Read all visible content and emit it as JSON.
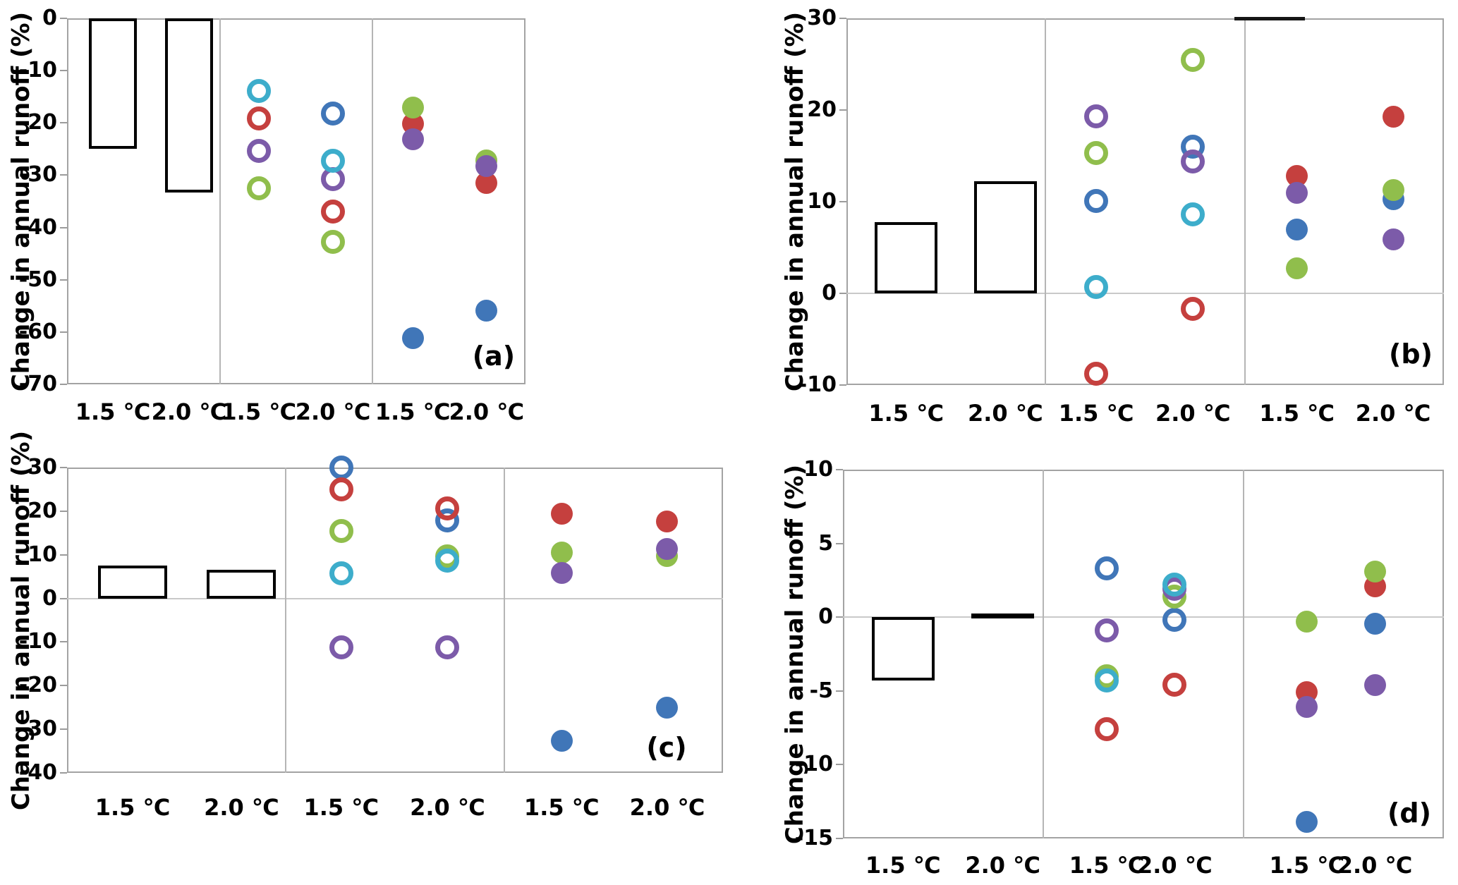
{
  "chart_data": {
    "type": "bar+scatter",
    "ylabel": "Change in annual runoff (%)",
    "series_colors": {
      "blue": "#4076B8",
      "red": "#C5403E",
      "green": "#90BE4C",
      "purple": "#7C5BA9",
      "cyan": "#3DADCB"
    },
    "marker_styles": {
      "open": "hollow circle",
      "filled": "solid circle"
    },
    "panels": [
      {
        "id": "a",
        "label": "(a)",
        "ylim": [
          -70,
          0
        ],
        "yticks": [
          0,
          -10,
          -20,
          -30,
          -40,
          -50,
          -60,
          -70
        ],
        "x_categories": [
          "1.5 ℃",
          "2.0 ℃",
          "1.5 ℃",
          "2.0 ℃",
          "1.5 ℃",
          "2.0 ℃"
        ],
        "bars": [
          {
            "cat": 0,
            "value": -25.0
          },
          {
            "cat": 1,
            "value": -33.3
          }
        ],
        "markers": [
          {
            "cat": 2,
            "series": "red",
            "style": "open",
            "value": -19.2
          },
          {
            "cat": 2,
            "series": "green",
            "style": "open",
            "value": -32.5
          },
          {
            "cat": 2,
            "series": "purple",
            "style": "open",
            "value": -25.3
          },
          {
            "cat": 2,
            "series": "cyan",
            "style": "open",
            "value": -13.9
          },
          {
            "cat": 3,
            "series": "blue",
            "style": "open",
            "value": -18.2
          },
          {
            "cat": 3,
            "series": "red",
            "style": "open",
            "value": -36.9
          },
          {
            "cat": 3,
            "series": "green",
            "style": "open",
            "value": -42.7
          },
          {
            "cat": 3,
            "series": "purple",
            "style": "open",
            "value": -30.8
          },
          {
            "cat": 3,
            "series": "cyan",
            "style": "open",
            "value": -27.3
          },
          {
            "cat": 4,
            "series": "blue",
            "style": "filled",
            "value": -61.1
          },
          {
            "cat": 4,
            "series": "red",
            "style": "filled",
            "value": -20.2
          },
          {
            "cat": 4,
            "series": "green",
            "style": "filled",
            "value": -17.1
          },
          {
            "cat": 4,
            "series": "purple",
            "style": "filled",
            "value": -23.1
          },
          {
            "cat": 5,
            "series": "blue",
            "style": "filled",
            "value": -55.9
          },
          {
            "cat": 5,
            "series": "red",
            "style": "filled",
            "value": -31.5
          },
          {
            "cat": 5,
            "series": "green",
            "style": "filled",
            "value": -27.2
          },
          {
            "cat": 5,
            "series": "purple",
            "style": "filled",
            "value": -28.3
          }
        ]
      },
      {
        "id": "b",
        "label": "(b)",
        "ylim": [
          -10,
          30
        ],
        "yticks": [
          30,
          20,
          10,
          0,
          -10
        ],
        "x_categories": [
          "1.5 ℃",
          "2.0 ℃",
          "1.5 ℃",
          "2.0 ℃",
          "1.5 ℃",
          "2.0 ℃"
        ],
        "bars": [
          {
            "cat": 0,
            "value": 7.8
          },
          {
            "cat": 1,
            "value": 12.2
          }
        ],
        "markers": [
          {
            "cat": 2,
            "series": "blue",
            "style": "open",
            "value": 10.1
          },
          {
            "cat": 2,
            "series": "red",
            "style": "open",
            "value": -8.8
          },
          {
            "cat": 2,
            "series": "green",
            "style": "open",
            "value": 15.3
          },
          {
            "cat": 2,
            "series": "purple",
            "style": "open",
            "value": 19.3
          },
          {
            "cat": 2,
            "series": "cyan",
            "style": "open",
            "value": 0.7
          },
          {
            "cat": 3,
            "series": "blue",
            "style": "open",
            "value": 16.0
          },
          {
            "cat": 3,
            "series": "red",
            "style": "open",
            "value": -1.7
          },
          {
            "cat": 3,
            "series": "green",
            "style": "open",
            "value": 25.5
          },
          {
            "cat": 3,
            "series": "purple",
            "style": "open",
            "value": 14.4
          },
          {
            "cat": 3,
            "series": "cyan",
            "style": "open",
            "value": 8.6
          },
          {
            "cat": 4,
            "series": "blue",
            "style": "filled",
            "value": 7.0
          },
          {
            "cat": 4,
            "series": "red",
            "style": "filled",
            "value": 12.8
          },
          {
            "cat": 4,
            "series": "green",
            "style": "filled",
            "value": 2.7
          },
          {
            "cat": 4,
            "series": "purple",
            "style": "filled",
            "value": 11.0
          },
          {
            "cat": 5,
            "series": "blue",
            "style": "filled",
            "value": 10.3
          },
          {
            "cat": 5,
            "series": "red",
            "style": "filled",
            "value": 19.3
          },
          {
            "cat": 5,
            "series": "green",
            "style": "filled",
            "value": 11.3
          },
          {
            "cat": 5,
            "series": "purple",
            "style": "filled",
            "value": 5.9
          }
        ]
      },
      {
        "id": "c",
        "label": "(c)",
        "ylim": [
          -40,
          30
        ],
        "yticks": [
          30,
          20,
          10,
          0,
          -10,
          -20,
          -30,
          -40
        ],
        "x_categories": [
          "1.5 ℃",
          "2.0 ℃",
          "1.5 ℃",
          "2.0 ℃",
          "1.5 ℃",
          "2.0 ℃"
        ],
        "bars": [
          {
            "cat": 0,
            "value": 7.6
          },
          {
            "cat": 1,
            "value": 6.5
          }
        ],
        "markers": [
          {
            "cat": 2,
            "series": "blue",
            "style": "open",
            "value": 30.0
          },
          {
            "cat": 2,
            "series": "red",
            "style": "open",
            "value": 25.0
          },
          {
            "cat": 2,
            "series": "green",
            "style": "open",
            "value": 15.4
          },
          {
            "cat": 2,
            "series": "purple",
            "style": "open",
            "value": -11.2
          },
          {
            "cat": 2,
            "series": "cyan",
            "style": "open",
            "value": 5.7
          },
          {
            "cat": 3,
            "series": "blue",
            "style": "open",
            "value": 17.9
          },
          {
            "cat": 3,
            "series": "red",
            "style": "open",
            "value": 20.6
          },
          {
            "cat": 3,
            "series": "green",
            "style": "open",
            "value": 9.6
          },
          {
            "cat": 3,
            "series": "purple",
            "style": "open",
            "value": -11.3
          },
          {
            "cat": 3,
            "series": "cyan",
            "style": "open",
            "value": 8.7
          },
          {
            "cat": 4,
            "series": "blue",
            "style": "filled",
            "value": -32.7
          },
          {
            "cat": 4,
            "series": "red",
            "style": "filled",
            "value": 19.4
          },
          {
            "cat": 4,
            "series": "green",
            "style": "filled",
            "value": 10.6
          },
          {
            "cat": 4,
            "series": "purple",
            "style": "filled",
            "value": 5.8
          },
          {
            "cat": 5,
            "series": "blue",
            "style": "filled",
            "value": -25.0
          },
          {
            "cat": 5,
            "series": "red",
            "style": "filled",
            "value": 17.6
          },
          {
            "cat": 5,
            "series": "green",
            "style": "filled",
            "value": 9.7
          },
          {
            "cat": 5,
            "series": "purple",
            "style": "filled",
            "value": 11.3
          }
        ]
      },
      {
        "id": "d",
        "label": "(d)",
        "ylim": [
          -15,
          10
        ],
        "yticks": [
          10,
          5,
          0,
          -5,
          -10,
          -15
        ],
        "x_categories": [
          "1.5 ℃",
          "2.0 ℃",
          "1.5 ℃",
          "2.0 ℃",
          "1.5 ℃",
          "2.0 ℃"
        ],
        "bars": [
          {
            "cat": 0,
            "value": -4.3
          },
          {
            "cat": 1,
            "value": 0.1
          }
        ],
        "markers": [
          {
            "cat": 2,
            "series": "blue",
            "style": "open",
            "value": 3.3
          },
          {
            "cat": 2,
            "series": "red",
            "style": "open",
            "value": -7.6
          },
          {
            "cat": 2,
            "series": "green",
            "style": "open",
            "value": -4.0
          },
          {
            "cat": 2,
            "series": "purple",
            "style": "open",
            "value": -0.9
          },
          {
            "cat": 2,
            "series": "cyan",
            "style": "open",
            "value": -4.3
          },
          {
            "cat": 3,
            "series": "blue",
            "style": "open",
            "value": -0.2
          },
          {
            "cat": 3,
            "series": "red",
            "style": "open",
            "value": -4.6
          },
          {
            "cat": 3,
            "series": "green",
            "style": "open",
            "value": 1.4
          },
          {
            "cat": 3,
            "series": "purple",
            "style": "open",
            "value": 1.9
          },
          {
            "cat": 3,
            "series": "cyan",
            "style": "open",
            "value": 2.2
          },
          {
            "cat": 4,
            "series": "blue",
            "style": "filled",
            "value": -13.9
          },
          {
            "cat": 4,
            "series": "red",
            "style": "filled",
            "value": -5.1
          },
          {
            "cat": 4,
            "series": "green",
            "style": "filled",
            "value": -0.3
          },
          {
            "cat": 4,
            "series": "purple",
            "style": "filled",
            "value": -6.1
          },
          {
            "cat": 5,
            "series": "blue",
            "style": "filled",
            "value": -0.45
          },
          {
            "cat": 5,
            "series": "red",
            "style": "filled",
            "value": 2.1
          },
          {
            "cat": 5,
            "series": "green",
            "style": "filled",
            "value": 3.1
          },
          {
            "cat": 5,
            "series": "purple",
            "style": "filled",
            "value": -4.6
          }
        ]
      }
    ]
  }
}
